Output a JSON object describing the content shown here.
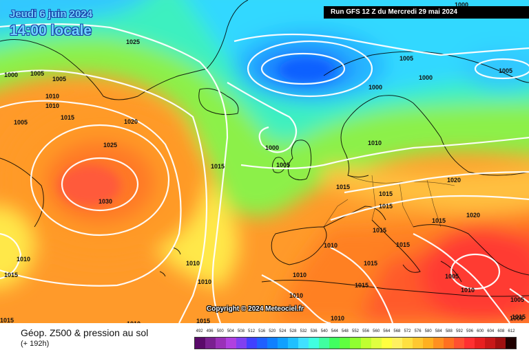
{
  "header": {
    "date": "Jeudi 6 juin 2024",
    "local_time": "14:00 locale",
    "run": "Run GFS 12 Z du Mercredi 29 mai 2024"
  },
  "footer": {
    "title": "Géop. Z500 & pression au sol",
    "lead": "(+ 192h)",
    "copyright": "Copyright © 2024 Meteociel.fr"
  },
  "legend": {
    "values": [
      "492",
      "496",
      "500",
      "504",
      "508",
      "512",
      "516",
      "520",
      "524",
      "528",
      "532",
      "536",
      "540",
      "544",
      "548",
      "552",
      "556",
      "560",
      "564",
      "568",
      "572",
      "576",
      "580",
      "584",
      "588",
      "592",
      "596",
      "600",
      "604",
      "608",
      "612"
    ],
    "colors": [
      "#5a0a6a",
      "#7a2090",
      "#9a30b8",
      "#b040e0",
      "#8040f0",
      "#4040ff",
      "#2060ff",
      "#1080ff",
      "#10a0ff",
      "#20c0ff",
      "#40e0ff",
      "#40ffe0",
      "#40ffa0",
      "#40ff60",
      "#60ff40",
      "#90ff30",
      "#c0ff30",
      "#e0ff40",
      "#ffff40",
      "#fff060",
      "#ffe040",
      "#ffc830",
      "#ffb020",
      "#ff9020",
      "#ff7020",
      "#ff5030",
      "#ff3030",
      "#e82020",
      "#c81818",
      "#a01010",
      "#200000"
    ]
  },
  "pressure_labels": [
    {
      "text": "1025"
    },
    {
      "text": "1000"
    },
    {
      "text": "1005"
    },
    {
      "text": "1005"
    },
    {
      "text": "1010"
    },
    {
      "text": "1010"
    },
    {
      "text": "1005"
    },
    {
      "text": "1015"
    },
    {
      "text": "1020"
    },
    {
      "text": "1025"
    },
    {
      "text": "1030"
    },
    {
      "text": "1015"
    },
    {
      "text": "1000"
    },
    {
      "text": "1005"
    },
    {
      "text": "1005"
    },
    {
      "text": "1000"
    },
    {
      "text": "1000"
    },
    {
      "text": "1005"
    },
    {
      "text": "1000"
    },
    {
      "text": "1015"
    },
    {
      "text": "1010"
    },
    {
      "text": "1015"
    },
    {
      "text": "1015"
    },
    {
      "text": "1020"
    },
    {
      "text": "1015"
    },
    {
      "text": "1020"
    },
    {
      "text": "1015"
    },
    {
      "text": "1015"
    },
    {
      "text": "1010"
    },
    {
      "text": "1015"
    },
    {
      "text": "1015"
    },
    {
      "text": "1010"
    },
    {
      "text": "1010"
    },
    {
      "text": "1010"
    },
    {
      "text": "1015"
    },
    {
      "text": "1010"
    },
    {
      "text": "1005"
    },
    {
      "text": "1005"
    },
    {
      "text": "1010"
    },
    {
      "text": "1010"
    },
    {
      "text": "1015"
    },
    {
      "text": "1015"
    },
    {
      "text": "1010"
    },
    {
      "text": "1015"
    },
    {
      "text": "1010"
    },
    {
      "text": "1010"
    },
    {
      "text": "1005"
    },
    {
      "text": "1010"
    }
  ]
}
